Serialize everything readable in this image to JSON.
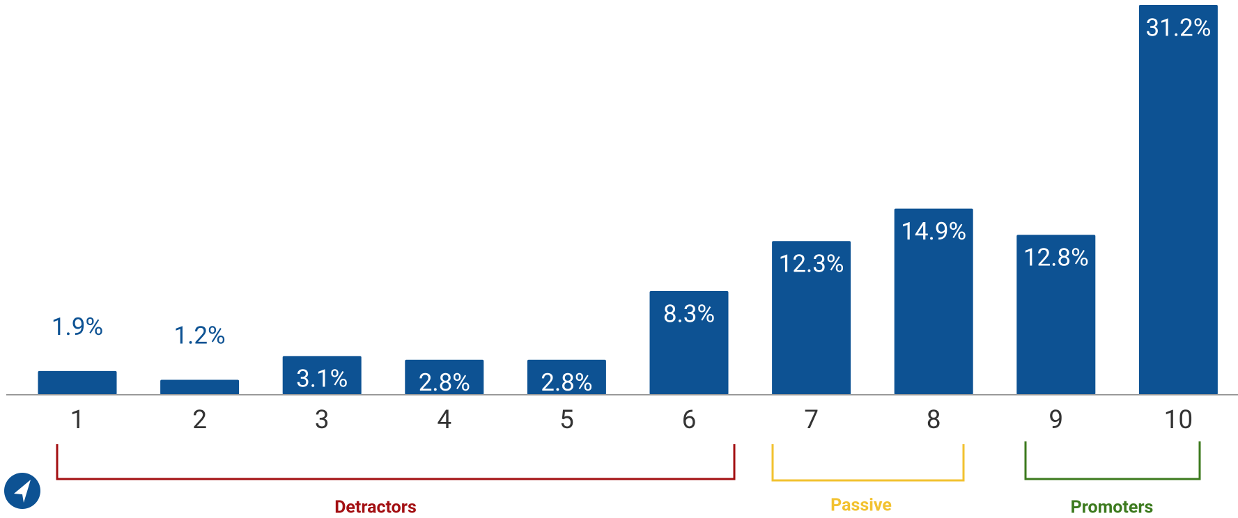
{
  "chart_data": {
    "type": "bar",
    "categories": [
      "1",
      "2",
      "3",
      "4",
      "5",
      "6",
      "7",
      "8",
      "9",
      "10"
    ],
    "values": [
      1.9,
      1.2,
      3.1,
      2.8,
      2.8,
      8.3,
      12.3,
      14.9,
      12.8,
      31.2
    ],
    "value_labels": [
      "1.9%",
      "1.2%",
      "3.1%",
      "2.8%",
      "2.8%",
      "8.3%",
      "12.3%",
      "14.9%",
      "12.8%",
      "31.2%"
    ],
    "color": "#0d5293",
    "ylim": [
      0,
      31.2
    ],
    "groups": [
      {
        "label": "Detractors",
        "color": "#a30f12"
      },
      {
        "label": "Passive",
        "color": "#f2c230"
      },
      {
        "label": "Promoters",
        "color": "#3c7a1e"
      }
    ]
  }
}
